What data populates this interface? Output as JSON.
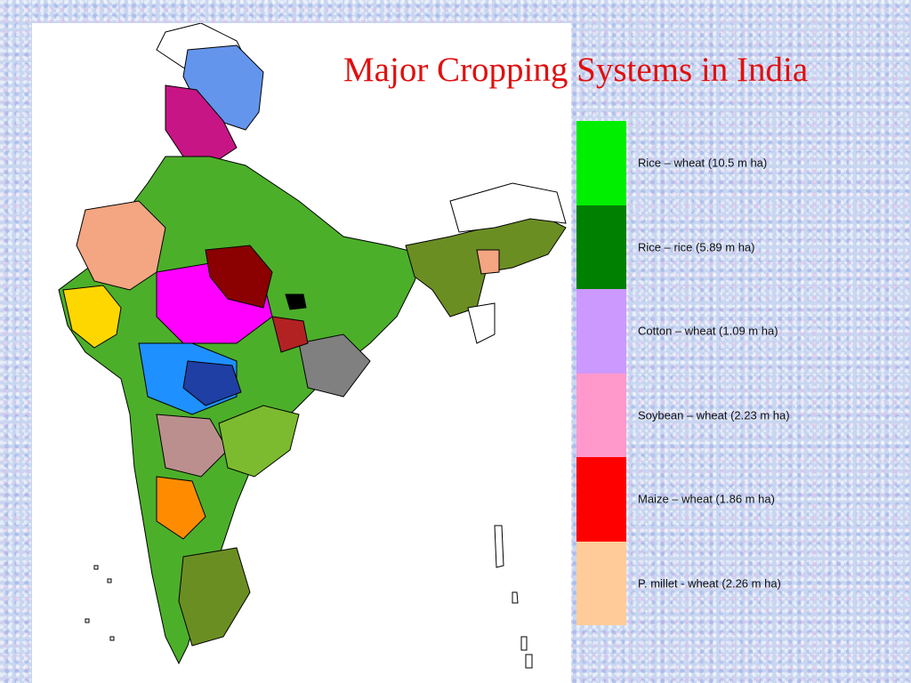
{
  "slide": {
    "title": "Major Cropping Systems in India"
  },
  "map": {
    "region": "India",
    "colors": {
      "rice_wheat": "#4caf2a",
      "rice_rice": "#6b8e23",
      "cotton_wheat": "#c8a2f8",
      "soybean_wheat": "#ff99cc",
      "maize_wheat": "#ff0000",
      "pmillet_wheat": "#ffcc99",
      "other_1": "#ff00ff",
      "other_2": "#1e90ff",
      "other_3": "#8b0000",
      "other_4": "#ffd700",
      "other_5": "#808080",
      "other_6": "#6495ed",
      "boundary": "#000000"
    }
  },
  "legend": [
    {
      "label": "Rice – wheat (10.5 m ha)",
      "color": "#00ee00"
    },
    {
      "label": "Rice – rice (5.89 m ha)",
      "color": "#008000"
    },
    {
      "label": "Cotton – wheat (1.09 m ha)",
      "color": "#cc99ff"
    },
    {
      "label": "Soybean – wheat (2.23 m ha)",
      "color": "#ff99cc"
    },
    {
      "label": "Maize – wheat (1.86 m ha)",
      "color": "#ff0000"
    },
    {
      "label": "P. millet - wheat (2.26 m ha)",
      "color": "#ffcc99"
    }
  ]
}
